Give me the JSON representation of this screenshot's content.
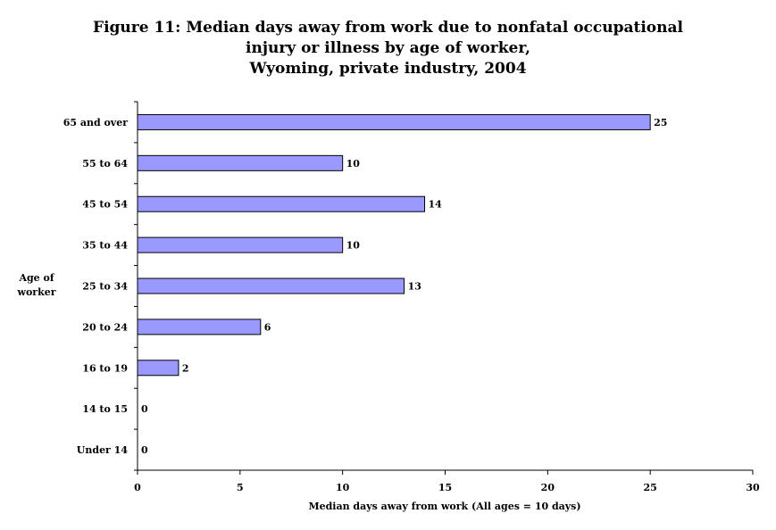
{
  "chart_data": {
    "type": "bar",
    "orientation": "horizontal",
    "title_lines": [
      "Figure 11:  Median days away from work due to nonfatal occupational",
      "injury or illness by age of worker,",
      "Wyoming, private industry, 2004"
    ],
    "xlabel": "Median days away from work (All ages = 10 days)",
    "ylabel_lines": [
      "Age of",
      "worker"
    ],
    "categories": [
      "65 and over",
      "55 to 64",
      "45 to 54",
      "35 to 44",
      "25 to 34",
      "20 to 24",
      "16 to 19",
      "14 to 15",
      "Under 14"
    ],
    "values": [
      25,
      10,
      14,
      10,
      13,
      6,
      2,
      0,
      0
    ],
    "data_labels": [
      "25",
      "10",
      "14",
      "10",
      "13",
      "6",
      "2",
      "0",
      "0"
    ],
    "xlim": [
      0,
      30
    ],
    "xticks": [
      0,
      5,
      10,
      15,
      20,
      25,
      30
    ],
    "grid": false,
    "legend": "none",
    "bar_color": "#9999ff",
    "bar_edge_color": "#000000"
  }
}
